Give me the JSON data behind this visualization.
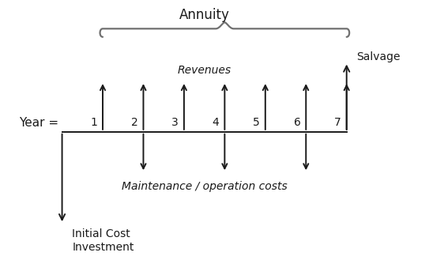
{
  "title": "Annuity",
  "year_label": "Year =",
  "years": [
    1,
    2,
    3,
    4,
    5,
    6,
    7
  ],
  "revenues_label": "Revenues",
  "maintenance_label": "Maintenance / operation costs",
  "salvage_label": "Salvage",
  "initial_label_line1": "Initial Cost",
  "initial_label_line2": "Investment",
  "maintenance_years": [
    2,
    4,
    6
  ],
  "revenue_years": [
    1,
    2,
    3,
    4,
    5,
    6,
    7
  ],
  "arrow_color": "#1a1a1a",
  "text_color": "#1a1a1a",
  "brace_color": "#707070",
  "fig_bg": "#ffffff",
  "arrow_lw": 1.4,
  "brace_lw": 1.6
}
